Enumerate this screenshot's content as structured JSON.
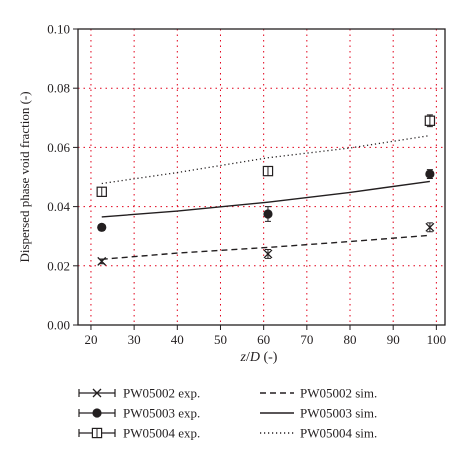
{
  "chart_data": {
    "type": "scatter",
    "xlabel": "z/D (-)",
    "ylabel": "Dispersed phase void fraction (-)",
    "xlim": [
      17,
      102
    ],
    "ylim": [
      0.0,
      0.1
    ],
    "xticks": [
      20,
      30,
      40,
      50,
      60,
      70,
      80,
      90,
      100
    ],
    "yticks": [
      0.0,
      0.02,
      0.04,
      0.06,
      0.08,
      0.1
    ],
    "xtick_labels": [
      "20",
      "30",
      "40",
      "50",
      "60",
      "70",
      "80",
      "90",
      "100"
    ],
    "ytick_labels": [
      "0.00",
      "0.02",
      "0.04",
      "0.06",
      "0.08",
      "0.10"
    ],
    "grid": true,
    "legend_position": "below",
    "series": [
      {
        "name": "PW05002 exp.",
        "kind": "points",
        "marker": "x",
        "x": [
          22.5,
          61,
          98.5
        ],
        "y": [
          0.0215,
          0.024,
          0.033
        ],
        "err": [
          0.0008,
          0.0015,
          0.0015
        ]
      },
      {
        "name": "PW05003 exp.",
        "kind": "points",
        "marker": "filled-circle",
        "x": [
          22.5,
          61,
          98.5
        ],
        "y": [
          0.033,
          0.0375,
          0.051
        ],
        "err": [
          0.0008,
          0.0025,
          0.0015
        ]
      },
      {
        "name": "PW05004 exp.",
        "kind": "points",
        "marker": "open-square",
        "x": [
          22.5,
          61,
          98.5
        ],
        "y": [
          0.045,
          0.052,
          0.069
        ],
        "err": [
          0.001,
          0.0012,
          0.002
        ]
      },
      {
        "name": "PW05002 sim.",
        "kind": "line",
        "style": "dashed",
        "x": [
          22.5,
          40,
          61,
          80,
          98.5
        ],
        "y": [
          0.0222,
          0.0243,
          0.0262,
          0.0282,
          0.0303
        ]
      },
      {
        "name": "PW05003 sim.",
        "kind": "line",
        "style": "solid",
        "x": [
          22.5,
          40,
          61,
          80,
          98.5
        ],
        "y": [
          0.0365,
          0.0385,
          0.0415,
          0.0448,
          0.0485
        ]
      },
      {
        "name": "PW05004 sim.",
        "kind": "line",
        "style": "dotted",
        "x": [
          22.5,
          40,
          61,
          80,
          98.5
        ],
        "y": [
          0.0478,
          0.0515,
          0.0565,
          0.0598,
          0.064
        ]
      }
    ]
  }
}
